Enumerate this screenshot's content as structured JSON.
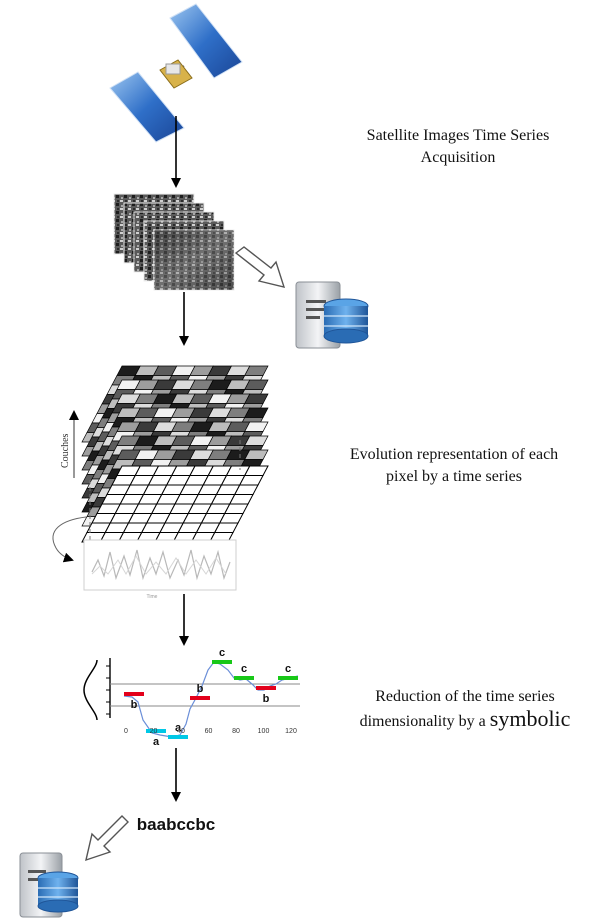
{
  "steps": [
    {
      "caption_line1": "Satellite Images Time Series",
      "caption_line2": "Acquisition"
    },
    {
      "caption_line1": "Evolution representation of each",
      "caption_line2": "pixel by a time series"
    },
    {
      "caption_line1": "Reduction of the time series",
      "caption_line2_prefix": "dimensionality by a ",
      "caption_line2_big": "symbolic"
    }
  ],
  "stack_axis_label": "Couches",
  "mini_chart_xlabel": "Time",
  "symbol_chart": {
    "x_ticks": [
      "0",
      "20",
      "40",
      "60",
      "80",
      "100",
      "120"
    ],
    "segments": [
      {
        "symbol": "b",
        "color": "#e3001b"
      },
      {
        "symbol": "a",
        "color": "#00c8e6"
      },
      {
        "symbol": "a",
        "color": "#00c8e6"
      },
      {
        "symbol": "b",
        "color": "#e3001b"
      },
      {
        "symbol": "c",
        "color": "#18c818"
      },
      {
        "symbol": "c",
        "color": "#18c818"
      },
      {
        "symbol": "b",
        "color": "#e3001b"
      },
      {
        "symbol": "c",
        "color": "#18c818"
      }
    ]
  },
  "symbolic_string": "baabccbc",
  "icons": [
    "satellite-icon",
    "image-stack-icon",
    "database-server-icon",
    "arrow-icon"
  ]
}
